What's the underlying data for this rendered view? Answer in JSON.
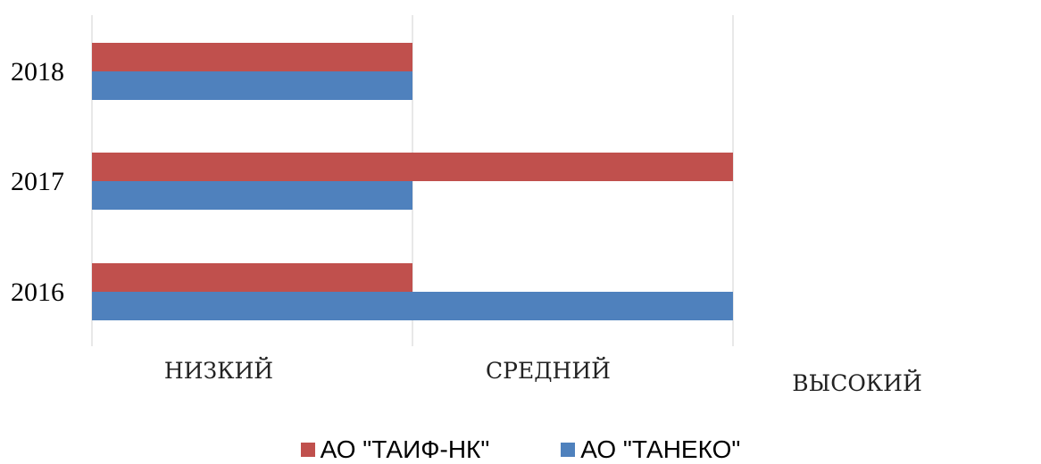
{
  "chart_data": {
    "type": "bar",
    "orientation": "horizontal",
    "categories": [
      "2016",
      "2017",
      "2018"
    ],
    "x_ticks": [
      "НИЗКИЙ",
      "СРЕДНИЙ",
      "ВЫСОКИЙ"
    ],
    "xlim": [
      0,
      2
    ],
    "series": [
      {
        "name": "АО \"ТАИФ-НК\"",
        "color": "#c0504d",
        "values": [
          1,
          2,
          1
        ]
      },
      {
        "name": "АО \"ТАНЕКО\"",
        "color": "#4f81bd",
        "values": [
          2,
          1,
          1
        ]
      }
    ],
    "grid": true,
    "legend_position": "bottom"
  }
}
